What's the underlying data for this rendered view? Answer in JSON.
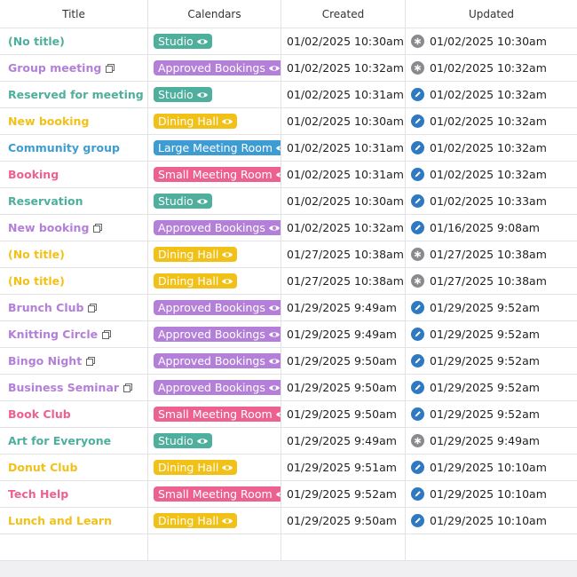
{
  "table": {
    "headers": [
      "Title",
      "Calendars",
      "Created",
      "Updated"
    ],
    "calendars": [
      {
        "name": "Studio",
        "color": "#4daf9c"
      },
      {
        "name": "Approved Bookings",
        "color": "#b47fd8"
      },
      {
        "name": "Dining Hall",
        "color": "#f2c118"
      },
      {
        "name": "Large Meeting Room",
        "color": "#3d9dd2"
      },
      {
        "name": "Small Meeting Room",
        "color": "#ec6190"
      }
    ],
    "rows": [
      {
        "title": "(No title)",
        "calendar": "Studio",
        "created": "01/02/2025 10:30am",
        "updated": "01/02/2025 10:30am",
        "copy": false,
        "edited": false
      },
      {
        "title": "Group meeting",
        "calendar": "Approved Bookings",
        "created": "01/02/2025 10:32am",
        "updated": "01/02/2025 10:32am",
        "copy": true,
        "edited": false
      },
      {
        "title": "Reserved for meeting",
        "calendar": "Studio",
        "created": "01/02/2025 10:31am",
        "updated": "01/02/2025 10:32am",
        "copy": false,
        "edited": true
      },
      {
        "title": "New booking",
        "calendar": "Dining Hall",
        "created": "01/02/2025 10:30am",
        "updated": "01/02/2025 10:32am",
        "copy": false,
        "edited": true
      },
      {
        "title": "Community group",
        "calendar": "Large Meeting Room",
        "created": "01/02/2025 10:31am",
        "updated": "01/02/2025 10:32am",
        "copy": false,
        "edited": true
      },
      {
        "title": "Booking",
        "calendar": "Small Meeting Room",
        "created": "01/02/2025 10:31am",
        "updated": "01/02/2025 10:32am",
        "copy": false,
        "edited": true
      },
      {
        "title": "Reservation",
        "calendar": "Studio",
        "created": "01/02/2025 10:30am",
        "updated": "01/02/2025 10:33am",
        "copy": false,
        "edited": true
      },
      {
        "title": "New booking",
        "calendar": "Approved Bookings",
        "created": "01/02/2025 10:32am",
        "updated": "01/16/2025 9:08am",
        "copy": true,
        "edited": true
      },
      {
        "title": "(No title)",
        "calendar": "Dining Hall",
        "created": "01/27/2025 10:38am",
        "updated": "01/27/2025 10:38am",
        "copy": false,
        "edited": false
      },
      {
        "title": "(No title)",
        "calendar": "Dining Hall",
        "created": "01/27/2025 10:38am",
        "updated": "01/27/2025 10:38am",
        "copy": false,
        "edited": false
      },
      {
        "title": "Brunch Club",
        "calendar": "Approved Bookings",
        "created": "01/29/2025 9:49am",
        "updated": "01/29/2025 9:52am",
        "copy": true,
        "edited": true
      },
      {
        "title": "Knitting Circle",
        "calendar": "Approved Bookings",
        "created": "01/29/2025 9:49am",
        "updated": "01/29/2025 9:52am",
        "copy": true,
        "edited": true
      },
      {
        "title": "Bingo Night",
        "calendar": "Approved Bookings",
        "created": "01/29/2025 9:50am",
        "updated": "01/29/2025 9:52am",
        "copy": true,
        "edited": true
      },
      {
        "title": "Business Seminar",
        "calendar": "Approved Bookings",
        "created": "01/29/2025 9:50am",
        "updated": "01/29/2025 9:52am",
        "copy": true,
        "edited": true
      },
      {
        "title": "Book Club",
        "calendar": "Small Meeting Room",
        "created": "01/29/2025 9:50am",
        "updated": "01/29/2025 9:52am",
        "copy": false,
        "edited": true
      },
      {
        "title": "Art for Everyone",
        "calendar": "Studio",
        "created": "01/29/2025 9:49am",
        "updated": "01/29/2025 9:49am",
        "copy": false,
        "edited": false
      },
      {
        "title": "Donut Club",
        "calendar": "Dining Hall",
        "created": "01/29/2025 9:51am",
        "updated": "01/29/2025 10:10am",
        "copy": false,
        "edited": true
      },
      {
        "title": "Tech Help",
        "calendar": "Small Meeting Room",
        "created": "01/29/2025 9:52am",
        "updated": "01/29/2025 10:10am",
        "copy": false,
        "edited": true
      },
      {
        "title": "Lunch and Learn",
        "calendar": "Dining Hall",
        "created": "01/29/2025 9:50am",
        "updated": "01/29/2025 10:10am",
        "copy": false,
        "edited": true
      }
    ]
  }
}
